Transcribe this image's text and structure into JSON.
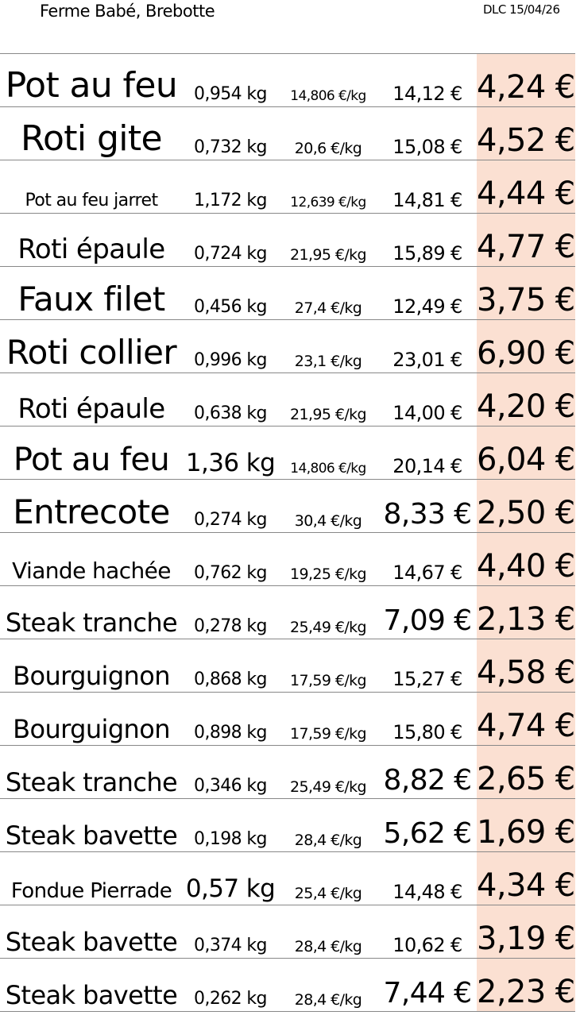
{
  "header": {
    "title": "Ferme Babé, Brebotte",
    "dlc": "DLC 15/04/26"
  },
  "colors": {
    "price_column_bg": "#fbe0d2",
    "row_divider": "#888888"
  },
  "rows": [
    {
      "name": "Pot au feu",
      "weight": "0,954 kg",
      "price_per_kg": "14,806 €/kg",
      "total": "14,12 €",
      "price": "4,24 €"
    },
    {
      "name": "Roti gite",
      "weight": "0,732 kg",
      "price_per_kg": "20,6 €/kg",
      "total": "15,08 €",
      "price": "4,52 €"
    },
    {
      "name": "Pot au feu jarret",
      "weight": "1,172 kg",
      "price_per_kg": "12,639 €/kg",
      "total": "14,81 €",
      "price": "4,44 €"
    },
    {
      "name": "Roti épaule",
      "weight": "0,724 kg",
      "price_per_kg": "21,95 €/kg",
      "total": "15,89 €",
      "price": "4,77 €"
    },
    {
      "name": "Faux filet",
      "weight": "0,456 kg",
      "price_per_kg": "27,4 €/kg",
      "total": "12,49 €",
      "price": "3,75 €"
    },
    {
      "name": "Roti collier",
      "weight": "0,996 kg",
      "price_per_kg": "23,1 €/kg",
      "total": "23,01 €",
      "price": "6,90 €"
    },
    {
      "name": "Roti épaule",
      "weight": "0,638 kg",
      "price_per_kg": "21,95 €/kg",
      "total": "14,00 €",
      "price": "4,20 €"
    },
    {
      "name": "Pot au feu",
      "weight": "1,36 kg",
      "price_per_kg": "14,806 €/kg",
      "total": "20,14 €",
      "price": "6,04 €"
    },
    {
      "name": "Entrecote",
      "weight": "0,274 kg",
      "price_per_kg": "30,4 €/kg",
      "total": "8,33 €",
      "price": "2,50 €"
    },
    {
      "name": "Viande hachée",
      "weight": "0,762 kg",
      "price_per_kg": "19,25 €/kg",
      "total": "14,67 €",
      "price": "4,40 €"
    },
    {
      "name": "Steak tranche",
      "weight": "0,278 kg",
      "price_per_kg": "25,49 €/kg",
      "total": "7,09 €",
      "price": "2,13 €"
    },
    {
      "name": "Bourguignon",
      "weight": "0,868 kg",
      "price_per_kg": "17,59 €/kg",
      "total": "15,27 €",
      "price": "4,58 €"
    },
    {
      "name": "Bourguignon",
      "weight": "0,898 kg",
      "price_per_kg": "17,59 €/kg",
      "total": "15,80 €",
      "price": "4,74 €"
    },
    {
      "name": "Steak tranche",
      "weight": "0,346 kg",
      "price_per_kg": "25,49 €/kg",
      "total": "8,82 €",
      "price": "2,65 €"
    },
    {
      "name": "Steak bavette",
      "weight": "0,198 kg",
      "price_per_kg": "28,4 €/kg",
      "total": "5,62 €",
      "price": "1,69 €"
    },
    {
      "name": "Fondue Pierrade",
      "weight": "0,57 kg",
      "price_per_kg": "25,4 €/kg",
      "total": "14,48 €",
      "price": "4,34 €"
    },
    {
      "name": "Steak bavette",
      "weight": "0,374 kg",
      "price_per_kg": "28,4 €/kg",
      "total": "10,62 €",
      "price": "3,19 €"
    },
    {
      "name": "Steak bavette",
      "weight": "0,262 kg",
      "price_per_kg": "28,4 €/kg",
      "total": "7,44 €",
      "price": "2,23 €"
    }
  ]
}
